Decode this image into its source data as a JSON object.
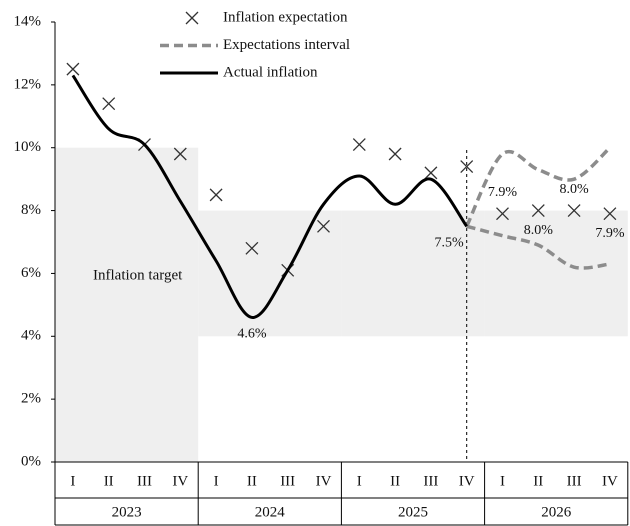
{
  "chart_data": {
    "type": "line",
    "categories": [
      "I",
      "II",
      "III",
      "IV",
      "I",
      "II",
      "III",
      "IV",
      "I",
      "II",
      "III",
      "IV",
      "I",
      "II",
      "III",
      "IV"
    ],
    "years": [
      "2023",
      "2024",
      "2025",
      "2026"
    ],
    "ylim": [
      0,
      14
    ],
    "yticks": [
      {
        "value": 0,
        "label": "0%"
      },
      {
        "value": 2,
        "label": "2%"
      },
      {
        "value": 4,
        "label": "4%"
      },
      {
        "value": 6,
        "label": "6%"
      },
      {
        "value": 8,
        "label": "8%"
      },
      {
        "value": 10,
        "label": "10%"
      },
      {
        "value": 12,
        "label": "12%"
      },
      {
        "value": 14,
        "label": "14%"
      }
    ],
    "target": {
      "label": "Inflation target",
      "color": "#efefef",
      "lower": [
        0,
        4,
        4,
        4
      ],
      "upper": [
        10,
        8,
        8,
        8
      ]
    },
    "series": [
      {
        "name": "Inflation expectation",
        "color": "#333333",
        "marker": "x",
        "values": [
          12.5,
          11.4,
          10.1,
          9.8,
          8.5,
          6.8,
          6.1,
          7.5,
          10.1,
          9.8,
          9.2,
          9.4,
          7.9,
          8.0,
          8.0,
          7.9
        ],
        "value_labels": [
          null,
          null,
          null,
          null,
          null,
          null,
          null,
          null,
          null,
          null,
          null,
          null,
          "7.9%",
          "8.0%",
          "8.0%",
          "7.9%"
        ]
      },
      {
        "name": "Expectations interval",
        "color": "#8c8c8c",
        "dashed": true,
        "upper": [
          null,
          null,
          null,
          null,
          null,
          null,
          null,
          null,
          null,
          null,
          null,
          7.5,
          9.8,
          9.3,
          9.0,
          10.0
        ],
        "lower": [
          null,
          null,
          null,
          null,
          null,
          null,
          null,
          null,
          null,
          null,
          null,
          7.5,
          7.2,
          6.9,
          6.2,
          6.3
        ]
      },
      {
        "name": "Actual inflation",
        "color": "#000000",
        "values": [
          12.3,
          10.6,
          10.1,
          8.3,
          6.4,
          4.6,
          6.1,
          8.2,
          9.1,
          8.2,
          9.0,
          7.5,
          null,
          null,
          null,
          null
        ],
        "value_labels": [
          null,
          null,
          null,
          null,
          null,
          "4.6%",
          null,
          null,
          null,
          null,
          null,
          "7.5%",
          null,
          null,
          null,
          null
        ]
      }
    ]
  }
}
